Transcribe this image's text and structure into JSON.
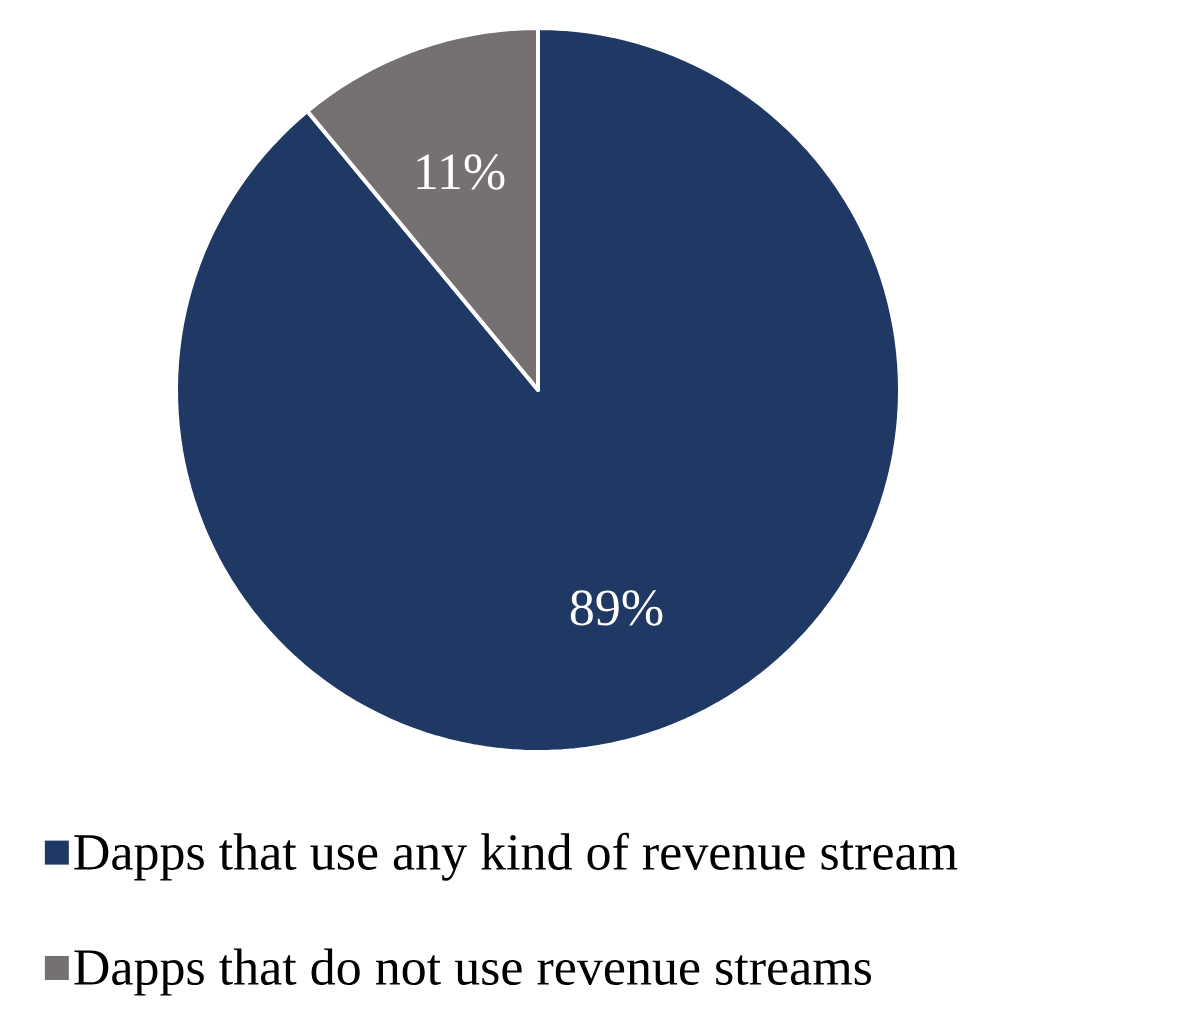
{
  "chart_data": {
    "type": "pie",
    "categories": [
      "Dapps that use any kind of revenue stream",
      "Dapps that do not use revenue streams"
    ],
    "values": [
      89,
      11
    ],
    "colors": [
      "#1f3864",
      "#767171"
    ],
    "value_labels": [
      "89%",
      "11%"
    ],
    "legend": "bottom"
  }
}
